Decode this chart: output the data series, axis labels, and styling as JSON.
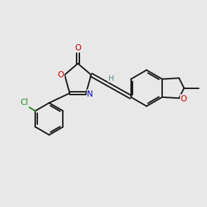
{
  "background_color": "#e8e8e8",
  "bond_color": "#1a1a1a",
  "figsize": [
    3.0,
    3.0
  ],
  "dpi": 100,
  "lw": 1.5,
  "atom_colors": {
    "O": "#cc0000",
    "N": "#0000cc",
    "Cl": "#228b22",
    "H": "#4a8a8a",
    "C": "#1a1a1a"
  }
}
